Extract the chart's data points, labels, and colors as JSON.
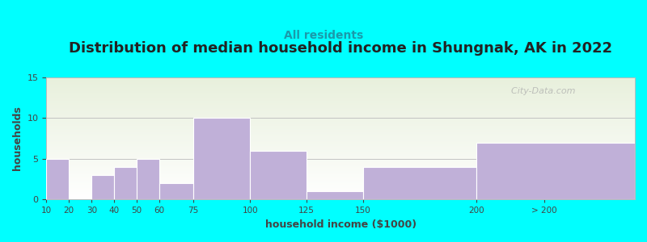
{
  "title": "Distribution of median household income in Shungnak, AK in 2022",
  "subtitle": "All residents",
  "xlabel": "household income ($1000)",
  "ylabel": "households",
  "background_color": "#00FFFF",
  "plot_bg_top": "#e8f0dc",
  "plot_bg_bottom": "#ffffff",
  "bar_color": "#c0b0d8",
  "bar_edge_color": "#c0b0d8",
  "ylim": [
    0,
    15
  ],
  "yticks": [
    0,
    5,
    10,
    15
  ],
  "tick_labels": [
    "10",
    "20",
    "30",
    "40",
    "50",
    "60",
    "75",
    "100",
    "125",
    "150",
    "200",
    "> 200"
  ],
  "tick_positions": [
    10,
    20,
    30,
    40,
    50,
    60,
    75,
    100,
    125,
    150,
    200,
    230
  ],
  "bar_lefts": [
    10,
    20,
    30,
    40,
    50,
    60,
    75,
    100,
    125,
    150,
    200
  ],
  "bar_rights": [
    20,
    30,
    40,
    50,
    60,
    75,
    100,
    125,
    150,
    200,
    270
  ],
  "bar_values": [
    5,
    0,
    3,
    4,
    5,
    2,
    10,
    6,
    1,
    4,
    7
  ],
  "xmin": 10,
  "xmax": 270,
  "title_fontsize": 13,
  "subtitle_fontsize": 10,
  "label_fontsize": 9,
  "watermark": "  City-Data.com"
}
